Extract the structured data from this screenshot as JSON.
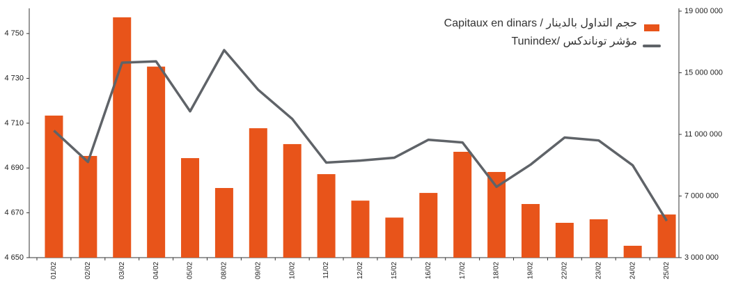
{
  "chart_data": {
    "type": "bar-line",
    "categories": [
      "01/02",
      "02/02",
      "03/02",
      "04/02",
      "05/02",
      "08/02",
      "09/02",
      "10/02",
      "11/02",
      "12/02",
      "15/02",
      "16/02",
      "17/02",
      "18/02",
      "19/02",
      "22/02",
      "23/02",
      "24/02",
      "25/02"
    ],
    "series": [
      {
        "name": "Capitaux en dinars / حجم التداول بالدينار",
        "type": "bar",
        "axis": "y2",
        "color": "#e8541a",
        "values": [
          12220000,
          9600000,
          18600000,
          15400000,
          9460000,
          7520000,
          11400000,
          10370000,
          8420000,
          6700000,
          5600000,
          7200000,
          9870000,
          8560000,
          6480000,
          5260000,
          5490000,
          3770000,
          5800000
        ]
      },
      {
        "name": "Tunindex/ مؤشر توناندكس",
        "type": "line",
        "axis": "y",
        "color": "#5f6368",
        "values": [
          4706.7,
          4692.7,
          4737,
          4737.6,
          4715.3,
          4742.6,
          4724.9,
          4711.9,
          4692.4,
          4693.3,
          4694.6,
          4702.6,
          4701.4,
          4681.6,
          4691.5,
          4703.6,
          4702.3,
          4691.2,
          4666.4
        ]
      }
    ],
    "ylim": [
      4650,
      4760
    ],
    "yticks": [
      {
        "value": 4650,
        "label": "4 650"
      },
      {
        "value": 4670,
        "label": "4 670"
      },
      {
        "value": 4690,
        "label": "4 690"
      },
      {
        "value": 4710,
        "label": "4 710"
      },
      {
        "value": 4730,
        "label": "4 730"
      },
      {
        "value": 4750,
        "label": "4 750"
      }
    ],
    "y2lim": [
      3000000,
      19000000
    ],
    "y2ticks": [
      {
        "value": 3000000,
        "label": "3 000 000"
      },
      {
        "value": 7000000,
        "label": "7 000 000"
      },
      {
        "value": 11000000,
        "label": "11 000 000"
      },
      {
        "value": 15000000,
        "label": "15 000 000"
      },
      {
        "value": 19000000,
        "label": "19 000 000"
      }
    ],
    "legend": "upper right"
  }
}
